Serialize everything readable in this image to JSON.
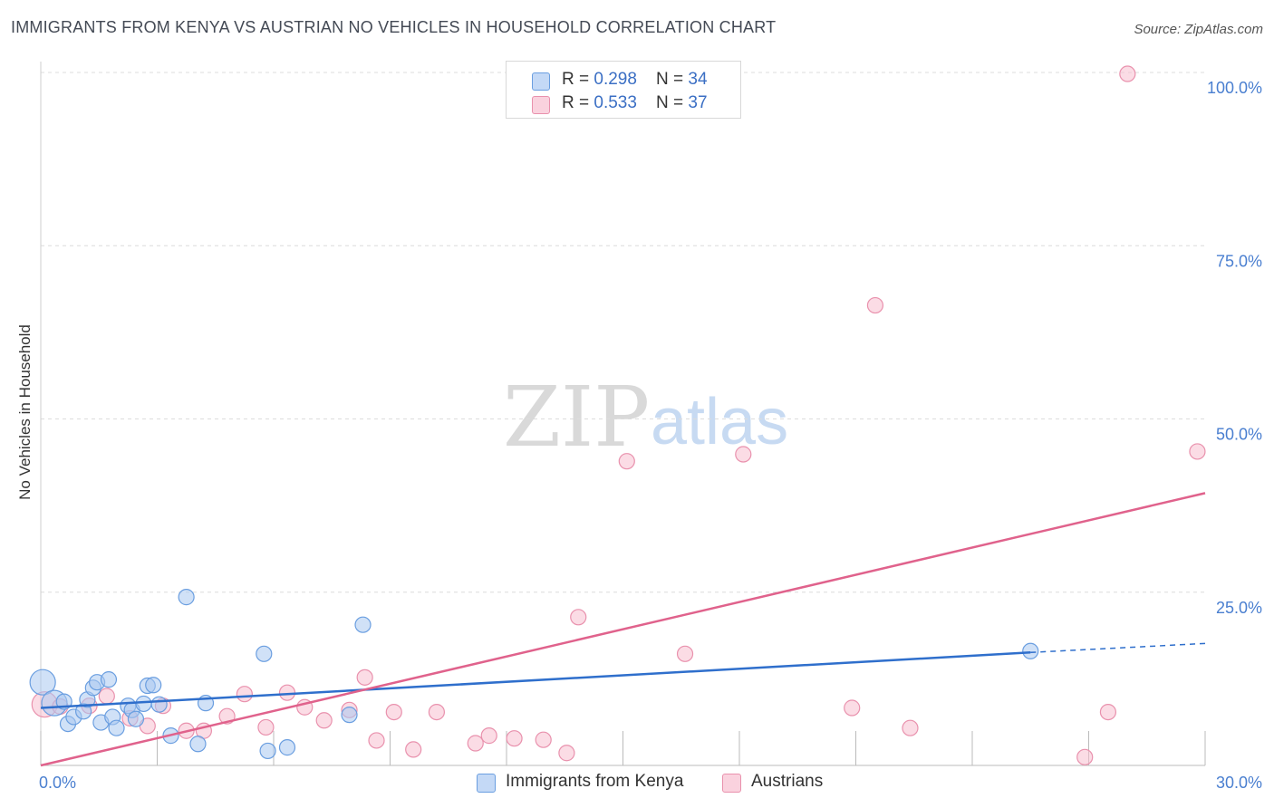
{
  "title": "IMMIGRANTS FROM KENYA VS AUSTRIAN NO VEHICLES IN HOUSEHOLD CORRELATION CHART",
  "source": "Source: ZipAtlas.com",
  "watermark": {
    "zip": "ZIP",
    "atlas": "atlas"
  },
  "legend_top": [
    {
      "r_label": "R = ",
      "r_value": "0.298",
      "n_label": "N = ",
      "n_value": "34"
    },
    {
      "r_label": "R = ",
      "r_value": "0.533",
      "n_label": "N = ",
      "n_value": "37"
    }
  ],
  "colors": {
    "kenya_fill": "#aac8f0",
    "kenya_stroke": "#6a9ee0",
    "kenya_line": "#2f6fcc",
    "austrians_fill": "#f7bfd0",
    "austrians_stroke": "#e991ad",
    "austrians_line": "#e0628c",
    "tick_label": "#4a7fd0",
    "grid": "#dcdcdc"
  },
  "chart_data": {
    "type": "scatter",
    "title": "IMMIGRANTS FROM KENYA VS AUSTRIAN NO VEHICLES IN HOUSEHOLD CORRELATION CHART",
    "xlabel": "",
    "ylabel": "No Vehicles in Household",
    "xlim": [
      0,
      30
    ],
    "ylim": [
      0,
      100
    ],
    "x_tick_labels": [
      "0.0%",
      "30.0%"
    ],
    "y_tick_values": [
      25,
      50,
      75,
      100
    ],
    "y_tick_labels": [
      "25.0%",
      "50.0%",
      "75.0%",
      "100.0%"
    ],
    "grid": true,
    "legend_placement": "bottom",
    "series": [
      {
        "name": "Immigrants from Kenya",
        "r": 0.298,
        "n": 34,
        "trend": {
          "x0": 0,
          "y0": 8.3,
          "x1": 25.5,
          "y1": 16.3,
          "dashed_to_x": 30,
          "dashed_to_y": 17.6
        },
        "points": [
          {
            "x": 0.05,
            "y": 12.0,
            "size": "large"
          },
          {
            "x": 0.35,
            "y": 9.0,
            "size": "large"
          },
          {
            "x": 0.6,
            "y": 9.2
          },
          {
            "x": 0.7,
            "y": 6.0
          },
          {
            "x": 0.85,
            "y": 7.0
          },
          {
            "x": 1.1,
            "y": 7.8
          },
          {
            "x": 1.2,
            "y": 9.5
          },
          {
            "x": 1.35,
            "y": 11.2
          },
          {
            "x": 1.45,
            "y": 12.0
          },
          {
            "x": 1.55,
            "y": 6.2
          },
          {
            "x": 1.75,
            "y": 12.4
          },
          {
            "x": 1.85,
            "y": 7.0
          },
          {
            "x": 1.95,
            "y": 5.4
          },
          {
            "x": 2.25,
            "y": 8.6
          },
          {
            "x": 2.35,
            "y": 8.0
          },
          {
            "x": 2.45,
            "y": 6.7
          },
          {
            "x": 2.65,
            "y": 8.9
          },
          {
            "x": 2.75,
            "y": 11.5
          },
          {
            "x": 2.9,
            "y": 11.6
          },
          {
            "x": 3.05,
            "y": 8.8
          },
          {
            "x": 3.35,
            "y": 4.3
          },
          {
            "x": 3.75,
            "y": 24.3
          },
          {
            "x": 4.05,
            "y": 3.1
          },
          {
            "x": 4.25,
            "y": 9.0
          },
          {
            "x": 5.75,
            "y": 16.1
          },
          {
            "x": 5.85,
            "y": 2.1
          },
          {
            "x": 6.35,
            "y": 2.6
          },
          {
            "x": 7.95,
            "y": 7.3
          },
          {
            "x": 8.3,
            "y": 20.3
          },
          {
            "x": 25.5,
            "y": 16.5
          }
        ]
      },
      {
        "name": "Austrians",
        "r": 0.533,
        "n": 37,
        "trend": {
          "x0": 0,
          "y0": 0,
          "x1": 30,
          "y1": 39.3
        },
        "points": [
          {
            "x": 0.1,
            "y": 8.8,
            "size": "large"
          },
          {
            "x": 0.5,
            "y": 8.5
          },
          {
            "x": 1.25,
            "y": 8.6
          },
          {
            "x": 1.7,
            "y": 10.0
          },
          {
            "x": 2.3,
            "y": 6.8
          },
          {
            "x": 2.75,
            "y": 5.7
          },
          {
            "x": 3.15,
            "y": 8.6
          },
          {
            "x": 3.75,
            "y": 5.0
          },
          {
            "x": 4.2,
            "y": 5.0
          },
          {
            "x": 4.8,
            "y": 7.1
          },
          {
            "x": 5.25,
            "y": 10.3
          },
          {
            "x": 5.8,
            "y": 5.5
          },
          {
            "x": 6.35,
            "y": 10.5
          },
          {
            "x": 6.8,
            "y": 8.4
          },
          {
            "x": 7.3,
            "y": 6.5
          },
          {
            "x": 7.95,
            "y": 8.0
          },
          {
            "x": 8.35,
            "y": 12.7
          },
          {
            "x": 8.65,
            "y": 3.6
          },
          {
            "x": 9.1,
            "y": 7.7
          },
          {
            "x": 9.6,
            "y": 2.3
          },
          {
            "x": 10.2,
            "y": 7.7
          },
          {
            "x": 11.2,
            "y": 3.2
          },
          {
            "x": 11.55,
            "y": 4.3
          },
          {
            "x": 12.2,
            "y": 3.9
          },
          {
            "x": 12.95,
            "y": 3.7
          },
          {
            "x": 13.55,
            "y": 1.8
          },
          {
            "x": 13.85,
            "y": 21.4
          },
          {
            "x": 15.1,
            "y": 43.9
          },
          {
            "x": 16.6,
            "y": 16.1
          },
          {
            "x": 18.1,
            "y": 44.9
          },
          {
            "x": 20.9,
            "y": 8.3
          },
          {
            "x": 21.5,
            "y": 66.4
          },
          {
            "x": 22.4,
            "y": 5.4
          },
          {
            "x": 26.9,
            "y": 1.2
          },
          {
            "x": 27.5,
            "y": 7.7
          },
          {
            "x": 28.0,
            "y": 99.8
          },
          {
            "x": 29.8,
            "y": 45.3
          }
        ]
      }
    ]
  }
}
